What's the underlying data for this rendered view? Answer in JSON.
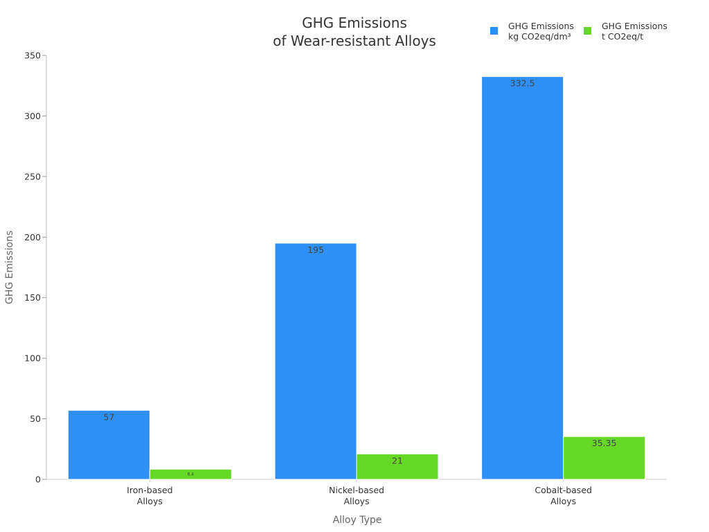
{
  "chart_data": {
    "type": "bar",
    "title_lines": [
      "GHG Emissions",
      "of Wear-resistant Alloys"
    ],
    "xlabel": "Alloy Type",
    "ylabel": "GHG Emissions",
    "categories": [
      [
        "Iron-based",
        "Alloys"
      ],
      [
        "Nickel-based",
        "Alloys"
      ],
      [
        "Cobalt-based",
        "Alloys"
      ]
    ],
    "ylim": [
      0,
      350
    ],
    "yticks": [
      0,
      50,
      100,
      150,
      200,
      250,
      300,
      350
    ],
    "grid": false,
    "legend_position": "top-right",
    "series": [
      {
        "name_lines": [
          "GHG Emissions",
          "kg CO2eq/dm³"
        ],
        "color": "#2e8ff5",
        "values": [
          57,
          195,
          332.5
        ],
        "labels": [
          "57",
          "195",
          "332.5"
        ]
      },
      {
        "name_lines": [
          "GHG Emissions",
          "t CO2eq/t"
        ],
        "color": "#66d926",
        "values": [
          8.4,
          21,
          35.35
        ],
        "labels": [
          "8.4",
          "21",
          "35.35"
        ]
      }
    ]
  }
}
